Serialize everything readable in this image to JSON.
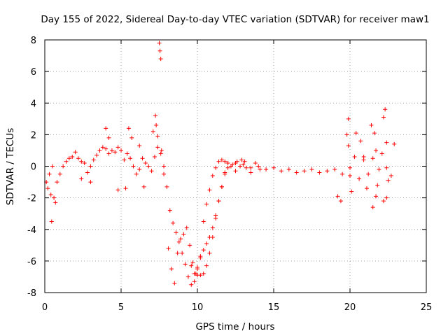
{
  "chart_data": {
    "type": "scatter",
    "title": "Day 155 of 2022, Sidereal Day-to-day VTEC variation (SDTVAR) for receiver maw1",
    "xlabel": "GPS time / hours",
    "ylabel": "SDTVAR / TECUs",
    "xlim": [
      0,
      25
    ],
    "ylim": [
      -8,
      8
    ],
    "xticks": [
      0,
      5,
      10,
      15,
      20,
      25
    ],
    "yticks": [
      -8,
      -6,
      -4,
      -2,
      0,
      2,
      4,
      6,
      8
    ],
    "grid": true,
    "marker": "+",
    "series": [
      {
        "name": "SDTVAR",
        "color": "#ff0000",
        "x": [
          0.1,
          0.2,
          0.3,
          0.4,
          0.5,
          0.6,
          0.8,
          1.0,
          1.2,
          1.4,
          1.6,
          1.8,
          2.0,
          2.2,
          2.4,
          2.6,
          2.8,
          3.0,
          3.2,
          3.4,
          3.6,
          3.8,
          4.0,
          4.2,
          4.4,
          4.6,
          4.8,
          5.0,
          5.2,
          5.4,
          5.6,
          5.8,
          6.0,
          6.2,
          6.4,
          6.6,
          6.8,
          7.0,
          7.2,
          7.4,
          7.6,
          7.8,
          8.0,
          8.2,
          8.4,
          8.6,
          8.8,
          9.0,
          9.2,
          9.4,
          9.6,
          9.8,
          10.0,
          10.2,
          10.4,
          10.6,
          10.8,
          11.0,
          11.2,
          11.4,
          11.6,
          11.8,
          12.0,
          12.5,
          13.0,
          13.5,
          14.0,
          14.5,
          15.0,
          15.5,
          16.0,
          16.5,
          17.0,
          17.5,
          18.0,
          18.5,
          19.0,
          19.5,
          20.0,
          20.3,
          20.6,
          20.9,
          21.2,
          21.5,
          21.8,
          22.1,
          22.4,
          22.7,
          0.45,
          0.7,
          2.4,
          3.0,
          4.0,
          4.2,
          4.8,
          5.3,
          5.5,
          5.7,
          6.2,
          6.5,
          7.1,
          7.25,
          7.3,
          7.4,
          7.5,
          7.55,
          7.6,
          7.65,
          7.8,
          8.1,
          8.3,
          8.5,
          8.7,
          8.9,
          9.1,
          9.3,
          9.5,
          9.7,
          9.9,
          10.0,
          10.2,
          10.4,
          10.6,
          10.8,
          11.0,
          11.2,
          11.4,
          11.6,
          11.8,
          12.0,
          12.2,
          12.5,
          12.8,
          13.1,
          9.6,
          9.8,
          10.0,
          10.2,
          10.4,
          10.6,
          10.8,
          11.0,
          11.2,
          11.4,
          11.6,
          11.8,
          12.0,
          12.3,
          12.6,
          12.9,
          13.2,
          13.5,
          13.8,
          14.1,
          19.8,
          19.9,
          20.0,
          20.1,
          20.4,
          20.7,
          20.9,
          21.1,
          21.4,
          21.6,
          21.7,
          21.9,
          22.2,
          22.3,
          22.4,
          22.5,
          19.2,
          19.4,
          19.9,
          21.5,
          21.7,
          22.2,
          22.4,
          22.9
        ],
        "y": [
          -1.0,
          -1.4,
          -0.5,
          -1.8,
          0.0,
          -2.0,
          -1.0,
          -0.5,
          0.0,
          0.3,
          0.5,
          0.6,
          0.9,
          0.5,
          0.3,
          0.2,
          -0.4,
          0.0,
          0.4,
          0.7,
          1.0,
          1.2,
          1.1,
          0.8,
          1.0,
          0.9,
          1.2,
          1.0,
          0.4,
          0.8,
          0.5,
          0.0,
          -0.5,
          -0.2,
          0.5,
          0.2,
          0.0,
          -0.3,
          0.6,
          1.2,
          0.8,
          -0.5,
          -1.3,
          -2.8,
          -3.6,
          -4.2,
          -4.8,
          -5.5,
          -6.2,
          -7.0,
          -7.5,
          -7.3,
          -6.9,
          -6.9,
          -6.8,
          -6.3,
          -5.5,
          -4.5,
          -3.3,
          -2.2,
          -1.3,
          -0.5,
          -0.1,
          0.2,
          0.1,
          -0.1,
          0.0,
          -0.2,
          -0.1,
          -0.3,
          -0.2,
          -0.4,
          -0.3,
          -0.2,
          -0.4,
          -0.3,
          -0.2,
          -0.5,
          -0.1,
          0.6,
          -0.8,
          0.4,
          -0.5,
          0.5,
          -1.2,
          0.8,
          -0.1,
          -0.6,
          -3.5,
          -2.3,
          -0.8,
          -1.0,
          2.4,
          1.8,
          -1.5,
          -1.4,
          2.4,
          1.8,
          1.3,
          -1.3,
          2.2,
          3.2,
          2.6,
          1.9,
          7.8,
          7.3,
          6.8,
          1.0,
          0.0,
          -5.2,
          -6.5,
          -7.4,
          -5.5,
          -4.6,
          -4.3,
          -3.9,
          -5.0,
          -6.1,
          -6.8,
          -6.5,
          -5.7,
          -3.5,
          -2.4,
          -1.5,
          -0.6,
          -0.1,
          0.3,
          0.4,
          0.3,
          0.2,
          0.0,
          -0.3,
          0.0,
          0.3,
          -6.3,
          -6.8,
          -6.4,
          -5.8,
          -5.3,
          -4.9,
          -4.5,
          -3.9,
          -3.1,
          -2.2,
          -1.3,
          -0.4,
          0.2,
          0.1,
          0.3,
          0.4,
          -0.1,
          -0.4,
          0.2,
          -0.2,
          2.0,
          1.3,
          -0.6,
          -1.6,
          2.1,
          1.6,
          0.6,
          -1.4,
          2.6,
          2.1,
          1.0,
          -0.2,
          3.1,
          3.6,
          1.5,
          -0.9,
          -1.9,
          -2.2,
          3.0,
          -2.6,
          -1.9,
          -2.2,
          -2.0,
          1.4
        ]
      }
    ]
  }
}
